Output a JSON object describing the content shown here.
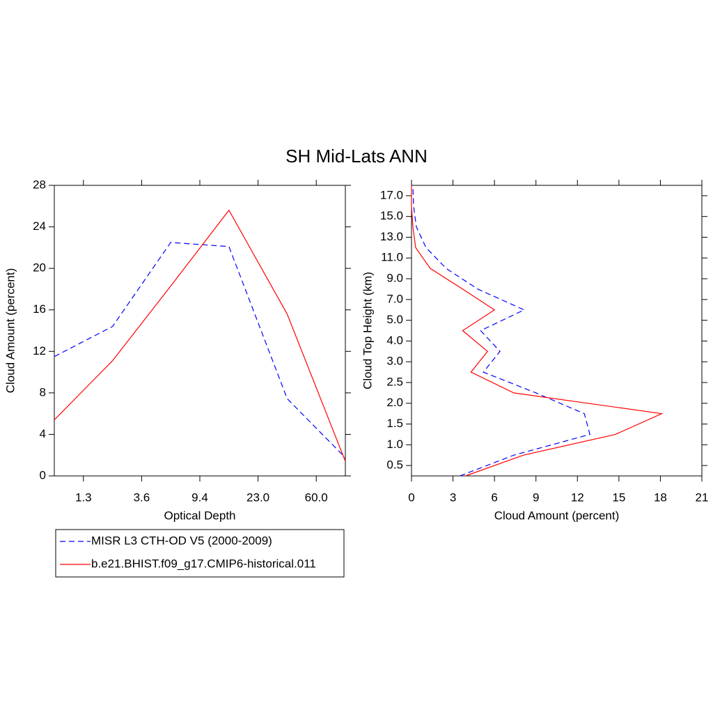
{
  "title": "SH Mid-Lats ANN",
  "chart_data": [
    {
      "type": "line",
      "xlabel": "Optical Depth",
      "ylabel": "Cloud Amount (percent)",
      "x": [
        0,
        1,
        2,
        3,
        4,
        5
      ],
      "xlim": [
        0,
        5
      ],
      "xticks": [
        {
          "value": 0.5,
          "label": "1.3"
        },
        {
          "value": 1.5,
          "label": "3.6"
        },
        {
          "value": 2.5,
          "label": "9.4"
        },
        {
          "value": 3.5,
          "label": "23.0"
        },
        {
          "value": 4.5,
          "label": "60.0"
        }
      ],
      "ylim": [
        0,
        28
      ],
      "yticks": [
        0,
        4,
        8,
        12,
        16,
        20,
        24,
        28
      ],
      "series": [
        {
          "name": "MISR L3 CTH-OD V5 (2000-2009)",
          "color": "#0000ff",
          "dashed": true,
          "values": [
            11.5,
            14.4,
            22.5,
            22.1,
            7.45,
            1.75
          ]
        },
        {
          "name": "b.e21.BHIST.f09_g17.CMIP6-historical.011",
          "color": "#ff0000",
          "dashed": false,
          "values": [
            5.4,
            11.1,
            18.3,
            25.6,
            15.6,
            1.4
          ]
        }
      ]
    },
    {
      "type": "hline",
      "xlabel": "Cloud Amount (percent)",
      "ylabel": "Cloud Top Height (km)",
      "xlim": [
        0,
        21
      ],
      "xticks": [
        0,
        3,
        6,
        9,
        12,
        15,
        18,
        21
      ],
      "y": [
        -0.5,
        0.5,
        1.5,
        2.5,
        3.5,
        4.5,
        5.5,
        6.5,
        7.5,
        8.5,
        9.5,
        10.5,
        11.5,
        12.5,
        13.5
      ],
      "ylim": [
        -0.5,
        13.5
      ],
      "yticks": [
        {
          "value": 0,
          "label": "0.5"
        },
        {
          "value": 1,
          "label": "1.0"
        },
        {
          "value": 2,
          "label": "1.5"
        },
        {
          "value": 3,
          "label": "2.0"
        },
        {
          "value": 4,
          "label": "2.5"
        },
        {
          "value": 5,
          "label": "3.0"
        },
        {
          "value": 6,
          "label": "4.0"
        },
        {
          "value": 7,
          "label": "5.0"
        },
        {
          "value": 8,
          "label": "7.0"
        },
        {
          "value": 9,
          "label": "9.0"
        },
        {
          "value": 10,
          "label": "11.0"
        },
        {
          "value": 11,
          "label": "13.0"
        },
        {
          "value": 12,
          "label": "15.0"
        },
        {
          "value": 13,
          "label": "17.0"
        }
      ],
      "series": [
        {
          "color": "#0000ff",
          "dashed": true,
          "values": [
            3.5,
            7.4,
            12.9,
            12.5,
            9.0,
            5.2,
            6.4,
            5.0,
            8.15,
            4.8,
            2.5,
            1.05,
            0.35,
            0.15,
            0.1
          ]
        },
        {
          "color": "#ff0000",
          "dashed": false,
          "values": [
            3.9,
            8.1,
            14.75,
            18.1,
            7.4,
            4.3,
            5.5,
            3.7,
            6.0,
            3.7,
            1.35,
            0.3,
            0.1,
            0,
            0
          ]
        }
      ]
    }
  ]
}
